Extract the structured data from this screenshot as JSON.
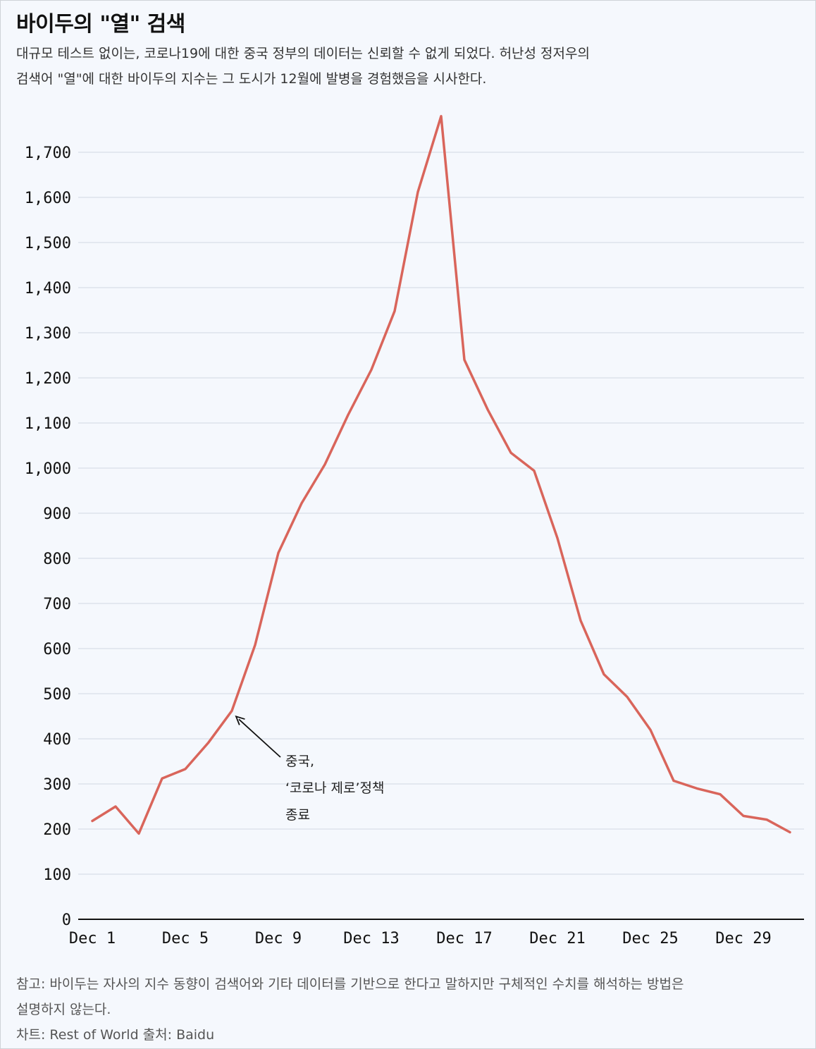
{
  "title": "바이두의 \"열\" 검색",
  "subtitle_line1": "대규모 테스트 없이는, 코로나19에 대한 중국 정부의 데이터는 신뢰할 수 없게 되었다. 허난성 정저우의",
  "subtitle_line2": "검색어 \"열\"에 대한 바이두의 지수는 그 도시가 12월에 발병을 경험했음을 시사한다.",
  "note_line1": "참고: 바이두는 자사의 지수 동향이 검색어와 기타 데이터를 기반으로 한다고 말하지만 구체적인 수치를 해석하는 방법은",
  "note_line2": "설명하지 않는다.",
  "credit": "차트: Rest of World 출처: Baidu",
  "colors": {
    "line": "#d9655b",
    "grid": "#dde3ec",
    "axis": "#111111"
  },
  "chart_data": {
    "type": "line",
    "x": [
      "Dec 1",
      "Dec 2",
      "Dec 3",
      "Dec 4",
      "Dec 5",
      "Dec 6",
      "Dec 7",
      "Dec 8",
      "Dec 9",
      "Dec 10",
      "Dec 11",
      "Dec 12",
      "Dec 13",
      "Dec 14",
      "Dec 15",
      "Dec 16",
      "Dec 17",
      "Dec 18",
      "Dec 19",
      "Dec 20",
      "Dec 21",
      "Dec 22",
      "Dec 23",
      "Dec 24",
      "Dec 25",
      "Dec 26",
      "Dec 27",
      "Dec 28",
      "Dec 29",
      "Dec 30",
      "Dec 31"
    ],
    "values": [
      218,
      250,
      190,
      312,
      333,
      392,
      462,
      608,
      812,
      922,
      1008,
      1118,
      1218,
      1348,
      1612,
      1780,
      1240,
      1130,
      1034,
      994,
      845,
      662,
      543,
      493,
      420,
      307,
      290,
      277,
      229,
      221,
      193
    ],
    "x_tick_labels": [
      "Dec 1",
      "Dec 5",
      "Dec 9",
      "Dec 13",
      "Dec 17",
      "Dec 21",
      "Dec 25",
      "Dec 29"
    ],
    "y_ticks": [
      "0",
      "100",
      "200",
      "300",
      "400",
      "500",
      "600",
      "700",
      "800",
      "900",
      "1,000",
      "1,100",
      "1,200",
      "1,300",
      "1,400",
      "1,500",
      "1,600",
      "1,700"
    ],
    "ylim": [
      0,
      1800
    ],
    "grid": true,
    "annotation": {
      "lines": [
        "중국,",
        "‘코로나 제로’정책",
        "종료"
      ],
      "target_index": 6
    }
  }
}
